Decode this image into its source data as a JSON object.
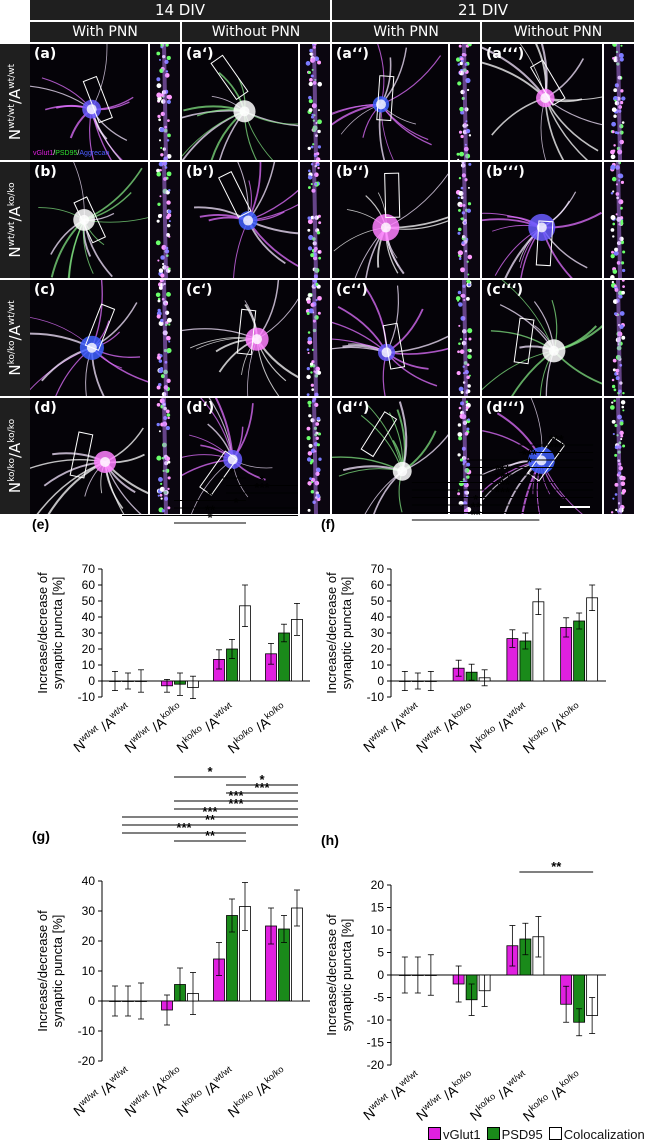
{
  "figure": {
    "headers": {
      "top": [
        "14 DIV",
        "21 DIV"
      ],
      "sub": [
        "With PNN",
        "Without PNN",
        "With PNN",
        "Without PNN"
      ]
    },
    "row_labels": [
      {
        "n": "N",
        "n_sup": "wt/wt",
        "a": "/A",
        "a_sup": "wt/wt"
      },
      {
        "n": "N",
        "n_sup": "wt/wt",
        "a": "/A",
        "a_sup": "ko/ko"
      },
      {
        "n": "N",
        "n_sup": "ko/ko",
        "a": "/A",
        "a_sup": "wt/wt"
      },
      {
        "n": "N",
        "n_sup": "ko/ko",
        "a": "/A",
        "a_sup": "ko/ko"
      }
    ],
    "panel_labels": [
      [
        "(a)",
        "(a‘)",
        "(a‘‘)",
        "(a‘‘‘)"
      ],
      [
        "(b)",
        "(b‘)",
        "(b‘‘)",
        "(b‘‘‘)"
      ],
      [
        "(c)",
        "(c‘)",
        "(c‘‘)",
        "(c‘‘‘)"
      ],
      [
        "(d)",
        "(d‘)",
        "(d‘‘)",
        "(d‘‘‘)"
      ]
    ],
    "stain_legend": {
      "vglut": "vGlut1",
      "psd": "PSD95",
      "agg": "Aggrecan"
    },
    "colors": {
      "vglut1": "#e020e0",
      "psd95": "#1a8a1a",
      "coloc": "#ffffff",
      "header_bg": "#1f1f1f"
    },
    "legend": [
      "vGlut1",
      "PSD95",
      "Colocalization"
    ]
  },
  "chart_data": [
    {
      "type": "bar",
      "panel": "(e)",
      "ylabel": "Increase/decrease of synaptic puncta [%]",
      "ylim": [
        -10,
        70
      ],
      "yticks": [
        -10,
        0,
        10,
        20,
        30,
        40,
        50,
        60,
        70
      ],
      "categories": [
        "wt/wt|wt/wt",
        "wt/wt|ko/ko",
        "ko/ko|wt/wt",
        "ko/ko|ko/ko"
      ],
      "series": [
        {
          "name": "vGlut1",
          "values": [
            0,
            -3,
            13.5,
            17
          ],
          "errors": [
            6,
            4,
            6,
            6.5
          ]
        },
        {
          "name": "PSD95",
          "values": [
            0,
            -2,
            20,
            30
          ],
          "errors": [
            5,
            7,
            6,
            5.5
          ]
        },
        {
          "name": "Colocalization",
          "values": [
            0,
            -4,
            47,
            38.5
          ],
          "errors": [
            7,
            7,
            13,
            10
          ]
        }
      ],
      "sig": [
        {
          "from": 2,
          "to": 2,
          "label": "*"
        },
        {
          "from": 2,
          "to": 3,
          "label": "*"
        },
        {
          "from": 2,
          "to": 3,
          "label": "***"
        },
        {
          "from": 1,
          "to": 2,
          "label": "*"
        },
        {
          "from": 1,
          "to": 3,
          "label": "*"
        },
        {
          "from": 0,
          "to": 3,
          "label": "**"
        },
        {
          "from": 1,
          "to": 2,
          "label": "*"
        }
      ]
    },
    {
      "type": "bar",
      "panel": "(f)",
      "ylabel": "Increase/decrease of synaptic puncta [%]",
      "ylim": [
        -10,
        70
      ],
      "yticks": [
        -10,
        0,
        10,
        20,
        30,
        40,
        50,
        60,
        70
      ],
      "categories": [
        "wt/wt|wt/wt",
        "wt/wt|ko/ko",
        "ko/ko|wt/wt",
        "ko/ko|ko/ko"
      ],
      "series": [
        {
          "name": "vGlut1",
          "values": [
            0,
            8,
            26.5,
            33.5
          ],
          "errors": [
            6,
            5,
            5.5,
            6
          ]
        },
        {
          "name": "PSD95",
          "values": [
            0,
            5.5,
            25,
            37.5
          ],
          "errors": [
            5,
            5,
            5,
            5
          ]
        },
        {
          "name": "Colocalization",
          "values": [
            0,
            2,
            49.5,
            52
          ],
          "errors": [
            6,
            5,
            8,
            8
          ]
        }
      ],
      "sig": [
        {
          "from": 2,
          "to": 3,
          "label": "***"
        },
        {
          "from": 2,
          "to": 3,
          "label": "***"
        },
        {
          "from": 1,
          "to": 3,
          "label": "***"
        },
        {
          "from": 1,
          "to": 3,
          "label": "*"
        },
        {
          "from": 1,
          "to": 2,
          "label": "***"
        },
        {
          "from": 0,
          "to": 3,
          "label": "***"
        },
        {
          "from": 0,
          "to": 3,
          "label": "***"
        },
        {
          "from": 0,
          "to": 3,
          "label": "***"
        },
        {
          "from": 0,
          "to": 2,
          "label": "*"
        },
        {
          "from": 0,
          "to": 2,
          "label": "**"
        },
        {
          "from": 0,
          "to": 2,
          "label": "**"
        }
      ]
    },
    {
      "type": "bar",
      "panel": "(g)",
      "ylabel": "Increase/decrease of synaptic puncta [%]",
      "ylim": [
        -20,
        40
      ],
      "yticks": [
        -20,
        -10,
        0,
        10,
        20,
        30,
        40
      ],
      "categories": [
        "wt/wt|wt/wt",
        "wt/wt|ko/ko",
        "ko/ko|wt/wt",
        "ko/ko|ko/ko"
      ],
      "series": [
        {
          "name": "vGlut1",
          "values": [
            0,
            -3,
            14,
            25
          ],
          "errors": [
            5,
            5,
            5.5,
            6
          ]
        },
        {
          "name": "PSD95",
          "values": [
            0,
            5.5,
            28.5,
            24
          ],
          "errors": [
            5,
            5.5,
            5.5,
            4.5
          ]
        },
        {
          "name": "Colocalization",
          "values": [
            0,
            2.5,
            31.5,
            31
          ],
          "errors": [
            6,
            7,
            8,
            6
          ]
        }
      ],
      "sig": [
        {
          "from": 1,
          "to": 2,
          "label": "*"
        },
        {
          "from": 2,
          "to": 3,
          "label": "*"
        },
        {
          "from": 2,
          "to": 3,
          "label": "***"
        },
        {
          "from": 1,
          "to": 3,
          "label": "***"
        },
        {
          "from": 1,
          "to": 3,
          "label": "***"
        },
        {
          "from": 0,
          "to": 3,
          "label": "***"
        },
        {
          "from": 0,
          "to": 3,
          "label": "**"
        },
        {
          "from": 0,
          "to": 2,
          "label": "***"
        },
        {
          "from": 1,
          "to": 2,
          "label": "**"
        }
      ]
    },
    {
      "type": "bar",
      "panel": "(h)",
      "ylabel": "Increase/decrease of synaptic puncta [%]",
      "ylim": [
        -20,
        20
      ],
      "yticks": [
        -20,
        -15,
        -10,
        -5,
        0,
        5,
        10,
        15,
        20
      ],
      "categories": [
        "wt/wt|wt/wt",
        "wt/wt|ko/ko",
        "ko/ko|wt/wt",
        "ko/ko|ko/ko"
      ],
      "series": [
        {
          "name": "vGlut1",
          "values": [
            0,
            -2,
            6.5,
            -6.5
          ],
          "errors": [
            4,
            4,
            4.5,
            4
          ]
        },
        {
          "name": "PSD95",
          "values": [
            0,
            -5.5,
            8,
            -10.5
          ],
          "errors": [
            4,
            3.5,
            3.5,
            3
          ]
        },
        {
          "name": "Colocalization",
          "values": [
            0,
            -3.5,
            8.5,
            -9
          ],
          "errors": [
            4.5,
            3.5,
            4.5,
            4
          ]
        }
      ],
      "sig": [
        {
          "from": 2,
          "to": 3,
          "label": "**"
        }
      ]
    }
  ]
}
